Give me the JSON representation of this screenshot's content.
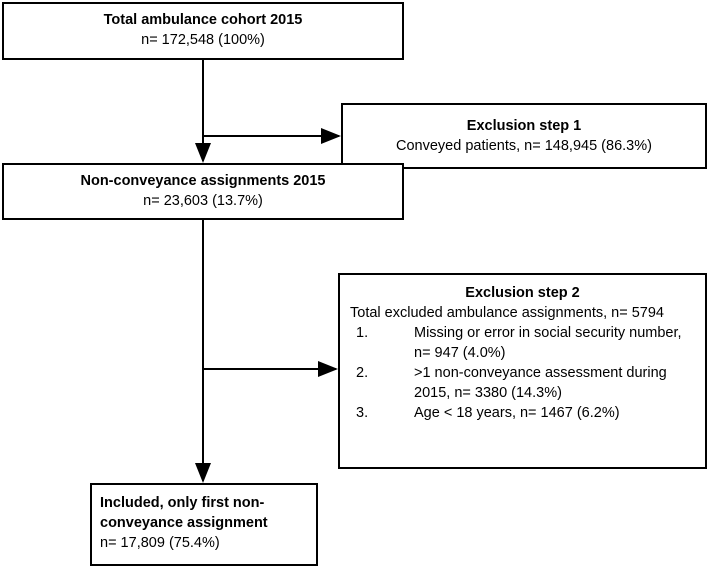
{
  "boxes": {
    "total": {
      "title": "Total ambulance cohort 2015",
      "count": "n= 172,548 (100%)"
    },
    "exclusion1": {
      "title": "Exclusion step 1",
      "text": "Conveyed patients, n= 148,945 (86.3%)"
    },
    "nonconveyance": {
      "title": "Non-conveyance assignments 2015",
      "count": "n= 23,603 (13.7%)"
    },
    "exclusion2": {
      "title": "Exclusion step 2",
      "text": "Total excluded ambulance assignments, n= 5794",
      "items": [
        {
          "num": "1.",
          "text": "Missing or error in social security number, n= 947 (4.0%)"
        },
        {
          "num": "2.",
          "text": ">1 non-conveyance assessment during 2015, n= 3380 (14.3%)"
        },
        {
          "num": "3.",
          "text": "Age < 18 years, n= 1467 (6.2%)"
        }
      ]
    },
    "included": {
      "title": "Included, only first non-conveyance assignment",
      "count": "n= 17,809 (75.4%)"
    }
  }
}
